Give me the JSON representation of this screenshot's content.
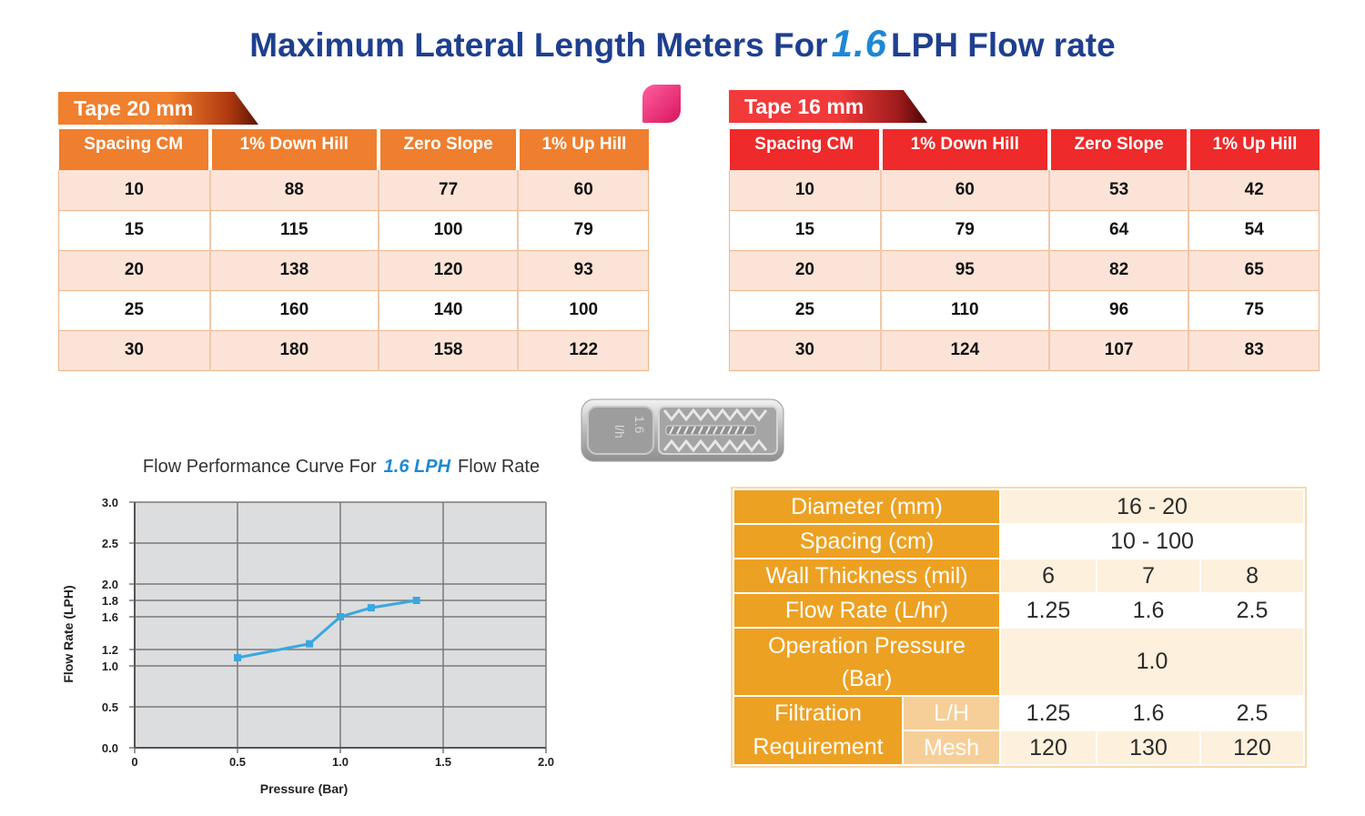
{
  "title": {
    "prefix": "Maximum Lateral Length Meters For",
    "big": "1.6",
    "suffix": "LPH Flow rate"
  },
  "table20": {
    "tag": "Tape 20 mm",
    "headers": [
      "Spacing CM",
      "1% Down Hill",
      "Zero Slope",
      "1% Up Hill"
    ],
    "rows": [
      [
        "10",
        "88",
        "77",
        "60"
      ],
      [
        "15",
        "115",
        "100",
        "79"
      ],
      [
        "20",
        "138",
        "120",
        "93"
      ],
      [
        "25",
        "160",
        "140",
        "100"
      ],
      [
        "30",
        "180",
        "158",
        "122"
      ]
    ]
  },
  "table16": {
    "tag": "Tape 16 mm",
    "headers": [
      "Spacing CM",
      "1% Down Hill",
      "Zero Slope",
      "1% Up Hill"
    ],
    "rows": [
      [
        "10",
        "60",
        "53",
        "42"
      ],
      [
        "15",
        "79",
        "64",
        "54"
      ],
      [
        "20",
        "95",
        "82",
        "65"
      ],
      [
        "25",
        "110",
        "96",
        "75"
      ],
      [
        "30",
        "124",
        "107",
        "83"
      ]
    ]
  },
  "dripper": {
    "label_top": "1.6",
    "label_bottom": "l/h"
  },
  "chart_title": {
    "prefix": "Flow Performance Curve For",
    "highlight": "1.6 LPH",
    "suffix": "Flow Rate"
  },
  "chart_data": {
    "type": "line",
    "xlabel": "Pressure (Bar)",
    "ylabel": "Flow Rate (LPH)",
    "xlim": [
      0,
      2.0
    ],
    "ylim": [
      0,
      3.0
    ],
    "xticks": [
      "0",
      "0.5",
      "1.0",
      "1.5",
      "2.0"
    ],
    "yticks": [
      "3.0",
      "2.5",
      "2.0",
      "1.8",
      "1.6",
      "1.2",
      "1.0",
      "0.5",
      "0.0"
    ],
    "grid": true,
    "series": [
      {
        "x": [
          0.5,
          0.85,
          1.0,
          1.15,
          1.37
        ],
        "y": [
          1.1,
          1.27,
          1.6,
          1.71,
          1.8
        ]
      }
    ],
    "colors": {
      "line": "#3aa7df",
      "plot_bg": "#dcdddf",
      "grid": "#7a7a7a"
    }
  },
  "spec": {
    "diameter": {
      "label": "Diameter (mm)",
      "value": "16 - 20"
    },
    "spacing": {
      "label": "Spacing (cm)",
      "value": "10 - 100"
    },
    "wall": {
      "label": "Wall Thickness (mil)",
      "values": [
        "6",
        "7",
        "8"
      ]
    },
    "flow": {
      "label": "Flow Rate (L/hr)",
      "values": [
        "1.25",
        "1.6",
        "2.5"
      ]
    },
    "pressure": {
      "label_line1": "Operation Pressure",
      "label_line2": "(Bar)",
      "value": "1.0"
    },
    "filtration": {
      "label_line1": "Filtration",
      "label_line2": "Requirement",
      "lh_label": "L/H",
      "lh_values": [
        "1.25",
        "1.6",
        "2.5"
      ],
      "mesh_label": "Mesh",
      "mesh_values": [
        "120",
        "130",
        "120"
      ]
    }
  }
}
